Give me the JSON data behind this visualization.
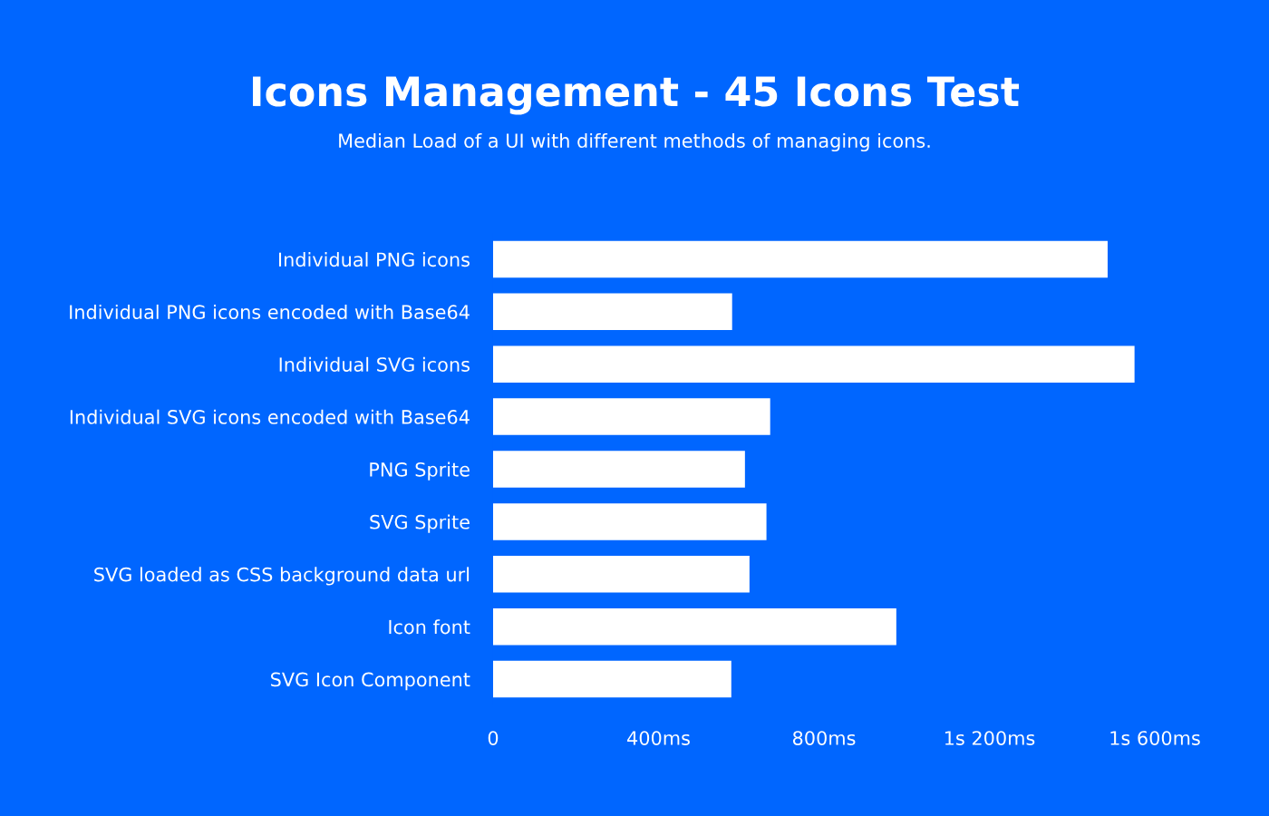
{
  "chart_data": {
    "type": "bar",
    "orientation": "horizontal",
    "title": "Icons Management - 45 Icons Test",
    "subtitle": "Median Load of a UI with different methods of managing icons.",
    "categories": [
      "Individual PNG icons",
      "Individual PNG icons encoded with Base64",
      "Individual SVG icons",
      "Individual SVG icons encoded with Base64",
      "PNG Sprite",
      "SVG Sprite",
      "SVG loaded as CSS background data url",
      "Icon font",
      "SVG Icon Component"
    ],
    "values": [
      1486,
      578,
      1551,
      670,
      609,
      661,
      620,
      975,
      576
    ],
    "color": "#ffffff",
    "xlim": [
      0,
      1600
    ],
    "xticks": [
      0,
      {
        "value": 400,
        "label": "400ms"
      },
      {
        "value": 800,
        "label": "800ms"
      },
      {
        "value": 1200,
        "label": "1s 200ms"
      },
      {
        "value": 1600,
        "label": "1s 600ms"
      }
    ],
    "grid": false,
    "legend": false
  }
}
